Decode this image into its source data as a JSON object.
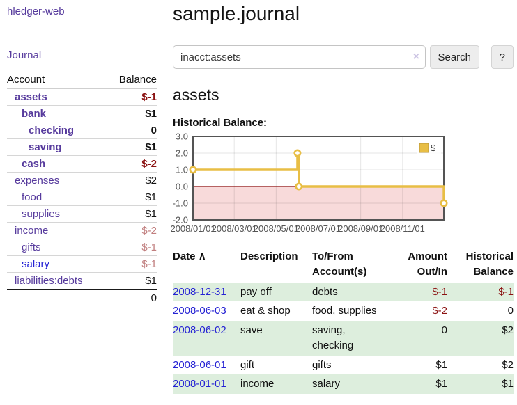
{
  "app": {
    "title": "hledger-web"
  },
  "sidebar": {
    "nav_journal": "Journal",
    "accounts": {
      "col_account": "Account",
      "col_balance": "Balance",
      "rows": [
        {
          "name": "assets",
          "depth": 1,
          "balance": "$-1",
          "in_acct": true,
          "negative": true,
          "link": "purple"
        },
        {
          "name": "bank",
          "depth": 2,
          "balance": "$1",
          "in_acct": true,
          "negative": false,
          "link": "purple"
        },
        {
          "name": "checking",
          "depth": 3,
          "balance": "0",
          "in_acct": true,
          "negative": false,
          "link": "purple"
        },
        {
          "name": "saving",
          "depth": 3,
          "balance": "$1",
          "in_acct": true,
          "negative": false,
          "link": "purple"
        },
        {
          "name": "cash",
          "depth": 2,
          "balance": "$-2",
          "in_acct": true,
          "negative": true,
          "link": "purple"
        },
        {
          "name": "expenses",
          "depth": 1,
          "balance": "$2",
          "in_acct": false,
          "negative": false,
          "link": "purple"
        },
        {
          "name": "food",
          "depth": 2,
          "balance": "$1",
          "in_acct": false,
          "negative": false,
          "link": "purple"
        },
        {
          "name": "supplies",
          "depth": 2,
          "balance": "$1",
          "in_acct": false,
          "negative": false,
          "link": "purple"
        },
        {
          "name": "income",
          "depth": 1,
          "balance": "$-2",
          "in_acct": false,
          "negative": true,
          "link": "purple"
        },
        {
          "name": "gifts",
          "depth": 2,
          "balance": "$-1",
          "in_acct": false,
          "negative": true,
          "link": "purple"
        },
        {
          "name": "salary",
          "depth": 2,
          "balance": "$-1",
          "in_acct": false,
          "negative": true,
          "link": "blue"
        },
        {
          "name": "liabilities:debts",
          "depth": 1,
          "balance": "$1",
          "in_acct": false,
          "negative": false,
          "link": "purple"
        }
      ],
      "total": "0"
    }
  },
  "main": {
    "title": "sample.journal",
    "search": {
      "value": "inacct:assets",
      "search_label": "Search",
      "help_label": "?"
    },
    "account_heading": "assets",
    "section_label": "Historical Balance:"
  },
  "chart_data": {
    "type": "line",
    "step": true,
    "title": "Historical Balance:",
    "series": [
      {
        "name": "$",
        "color": "#e8be45",
        "points": [
          [
            "2008-01-01",
            1
          ],
          [
            "2008-06-01",
            2
          ],
          [
            "2008-06-03",
            0
          ],
          [
            "2008-12-31",
            -1
          ]
        ]
      }
    ],
    "ylim": [
      -2,
      3
    ],
    "yticks": [
      {
        "v": 3,
        "label": "3.0"
      },
      {
        "v": 2,
        "label": "2.0"
      },
      {
        "v": 1,
        "label": "1.0"
      },
      {
        "v": 0,
        "label": "0.0"
      },
      {
        "v": -1,
        "label": "-1.0"
      },
      {
        "v": -2,
        "label": "-2.0"
      }
    ],
    "xticks": [
      {
        "date": "2008-01-01",
        "label": "2008/01/01"
      },
      {
        "date": "2008-03-01",
        "label": "2008/03/01"
      },
      {
        "date": "2008-05-01",
        "label": "2008/05/01"
      },
      {
        "date": "2008-07-01",
        "label": "2008/07/01"
      },
      {
        "date": "2008-09-01",
        "label": "2008/09/01"
      },
      {
        "date": "2008-11-01",
        "label": "2008/11/01"
      }
    ],
    "xrange": [
      "2008-01-01",
      "2008-12-31"
    ],
    "legend": {
      "label": "$",
      "position": "top-right"
    },
    "negative_region_fill": "#f8dada",
    "zero_line_color": "#8f1b1b",
    "grid": true
  },
  "transactions": {
    "headers": {
      "date": "Date",
      "description": "Description",
      "accounts": "To/From Account(s)",
      "amount": "Amount Out/In",
      "balance": "Historical Balance"
    },
    "rows": [
      {
        "date": "2008-12-31",
        "description": "pay off",
        "accounts": "debts",
        "amount": "$-1",
        "balance": "$-1",
        "amount_negative": true,
        "balance_negative": true,
        "shaded": true
      },
      {
        "date": "2008-06-03",
        "description": "eat & shop",
        "accounts": "food, supplies",
        "amount": "$-2",
        "balance": "0",
        "amount_negative": true,
        "balance_negative": false,
        "shaded": false
      },
      {
        "date": "2008-06-02",
        "description": "save",
        "accounts": "saving, checking",
        "amount": "0",
        "balance": "$2",
        "amount_negative": false,
        "balance_negative": false,
        "shaded": true
      },
      {
        "date": "2008-06-01",
        "description": "gift",
        "accounts": "gifts",
        "amount": "$1",
        "balance": "$2",
        "amount_negative": false,
        "balance_negative": false,
        "shaded": false
      },
      {
        "date": "2008-01-01",
        "description": "income",
        "accounts": "salary",
        "amount": "$1",
        "balance": "$1",
        "amount_negative": false,
        "balance_negative": false,
        "shaded": true
      }
    ]
  },
  "icons": {
    "sort_asc": "∧",
    "clear_search": "×",
    "legend_swatch": "gold-square"
  },
  "colors": {
    "link_purple": "#573b9d",
    "link_blue": "#2522d4",
    "negative_strong": "#8b1212",
    "negative_muted": "#c17f7f",
    "row_green": "#ddeedd",
    "chart_line": "#e8be45",
    "chart_negative_fill": "#f8dada",
    "chart_zero_line": "#8f1b1b"
  }
}
